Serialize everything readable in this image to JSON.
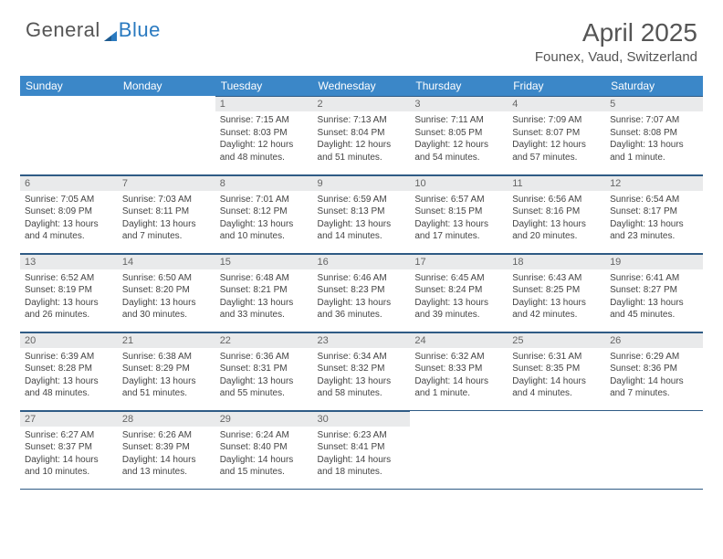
{
  "logo": {
    "text1": "General",
    "text2": "Blue"
  },
  "title": "April 2025",
  "location": "Founex, Vaud, Switzerland",
  "dayHeaders": [
    "Sunday",
    "Monday",
    "Tuesday",
    "Wednesday",
    "Thursday",
    "Friday",
    "Saturday"
  ],
  "colors": {
    "header_bg": "#3b87c8",
    "header_text": "#ffffff",
    "daynum_bg": "#e9eaeb",
    "border": "#2f5b85",
    "logo_gray": "#555555",
    "logo_blue": "#2a7ac0"
  },
  "weeks": [
    [
      null,
      null,
      {
        "n": "1",
        "sr": "7:15 AM",
        "ss": "8:03 PM",
        "dl": "12 hours and 48 minutes."
      },
      {
        "n": "2",
        "sr": "7:13 AM",
        "ss": "8:04 PM",
        "dl": "12 hours and 51 minutes."
      },
      {
        "n": "3",
        "sr": "7:11 AM",
        "ss": "8:05 PM",
        "dl": "12 hours and 54 minutes."
      },
      {
        "n": "4",
        "sr": "7:09 AM",
        "ss": "8:07 PM",
        "dl": "12 hours and 57 minutes."
      },
      {
        "n": "5",
        "sr": "7:07 AM",
        "ss": "8:08 PM",
        "dl": "13 hours and 1 minute."
      }
    ],
    [
      {
        "n": "6",
        "sr": "7:05 AM",
        "ss": "8:09 PM",
        "dl": "13 hours and 4 minutes."
      },
      {
        "n": "7",
        "sr": "7:03 AM",
        "ss": "8:11 PM",
        "dl": "13 hours and 7 minutes."
      },
      {
        "n": "8",
        "sr": "7:01 AM",
        "ss": "8:12 PM",
        "dl": "13 hours and 10 minutes."
      },
      {
        "n": "9",
        "sr": "6:59 AM",
        "ss": "8:13 PM",
        "dl": "13 hours and 14 minutes."
      },
      {
        "n": "10",
        "sr": "6:57 AM",
        "ss": "8:15 PM",
        "dl": "13 hours and 17 minutes."
      },
      {
        "n": "11",
        "sr": "6:56 AM",
        "ss": "8:16 PM",
        "dl": "13 hours and 20 minutes."
      },
      {
        "n": "12",
        "sr": "6:54 AM",
        "ss": "8:17 PM",
        "dl": "13 hours and 23 minutes."
      }
    ],
    [
      {
        "n": "13",
        "sr": "6:52 AM",
        "ss": "8:19 PM",
        "dl": "13 hours and 26 minutes."
      },
      {
        "n": "14",
        "sr": "6:50 AM",
        "ss": "8:20 PM",
        "dl": "13 hours and 30 minutes."
      },
      {
        "n": "15",
        "sr": "6:48 AM",
        "ss": "8:21 PM",
        "dl": "13 hours and 33 minutes."
      },
      {
        "n": "16",
        "sr": "6:46 AM",
        "ss": "8:23 PM",
        "dl": "13 hours and 36 minutes."
      },
      {
        "n": "17",
        "sr": "6:45 AM",
        "ss": "8:24 PM",
        "dl": "13 hours and 39 minutes."
      },
      {
        "n": "18",
        "sr": "6:43 AM",
        "ss": "8:25 PM",
        "dl": "13 hours and 42 minutes."
      },
      {
        "n": "19",
        "sr": "6:41 AM",
        "ss": "8:27 PM",
        "dl": "13 hours and 45 minutes."
      }
    ],
    [
      {
        "n": "20",
        "sr": "6:39 AM",
        "ss": "8:28 PM",
        "dl": "13 hours and 48 minutes."
      },
      {
        "n": "21",
        "sr": "6:38 AM",
        "ss": "8:29 PM",
        "dl": "13 hours and 51 minutes."
      },
      {
        "n": "22",
        "sr": "6:36 AM",
        "ss": "8:31 PM",
        "dl": "13 hours and 55 minutes."
      },
      {
        "n": "23",
        "sr": "6:34 AM",
        "ss": "8:32 PM",
        "dl": "13 hours and 58 minutes."
      },
      {
        "n": "24",
        "sr": "6:32 AM",
        "ss": "8:33 PM",
        "dl": "14 hours and 1 minute."
      },
      {
        "n": "25",
        "sr": "6:31 AM",
        "ss": "8:35 PM",
        "dl": "14 hours and 4 minutes."
      },
      {
        "n": "26",
        "sr": "6:29 AM",
        "ss": "8:36 PM",
        "dl": "14 hours and 7 minutes."
      }
    ],
    [
      {
        "n": "27",
        "sr": "6:27 AM",
        "ss": "8:37 PM",
        "dl": "14 hours and 10 minutes."
      },
      {
        "n": "28",
        "sr": "6:26 AM",
        "ss": "8:39 PM",
        "dl": "14 hours and 13 minutes."
      },
      {
        "n": "29",
        "sr": "6:24 AM",
        "ss": "8:40 PM",
        "dl": "14 hours and 15 minutes."
      },
      {
        "n": "30",
        "sr": "6:23 AM",
        "ss": "8:41 PM",
        "dl": "14 hours and 18 minutes."
      },
      null,
      null,
      null
    ]
  ]
}
